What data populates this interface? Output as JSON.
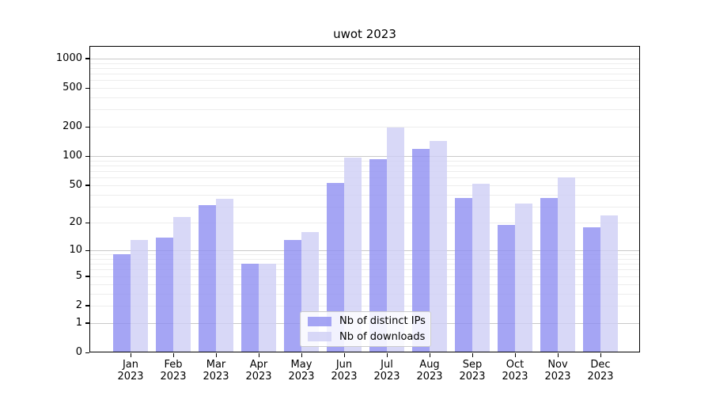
{
  "chart_data": {
    "type": "bar",
    "title": "uwot 2023",
    "scale": "log10(1+v)",
    "grid": "major+minor horizontal",
    "legend_position": "lower center inside plot",
    "categories": [
      "Jan",
      "Feb",
      "Mar",
      "Apr",
      "May",
      "Jun",
      "Jul",
      "Aug",
      "Sep",
      "Oct",
      "Nov",
      "Dec"
    ],
    "category_year": "2023",
    "yticks": [
      0,
      1,
      2,
      5,
      10,
      20,
      50,
      100,
      200,
      500,
      1000
    ],
    "ylim": [
      0,
      1340
    ],
    "xlabel": "",
    "ylabel": "",
    "series": [
      {
        "name": "Nb of distinct IPs",
        "color": "rgba(143,143,241,0.8)",
        "values": [
          9,
          14,
          31,
          7,
          13,
          53,
          93,
          118,
          37,
          19,
          37,
          18
        ]
      },
      {
        "name": "Nb of downloads",
        "color": "rgba(206,206,245,0.8)",
        "values": [
          13,
          23,
          36,
          7,
          16,
          96,
          197,
          143,
          52,
          32,
          60,
          24
        ]
      }
    ]
  },
  "colors": {
    "background": "#ffffff",
    "axis": "#000000",
    "grid_major": "#c9c9c9",
    "grid_minor": "#ededed",
    "bar_ips": "rgba(143,143,241,0.8)",
    "bar_downloads": "rgba(206,206,245,0.8)"
  }
}
